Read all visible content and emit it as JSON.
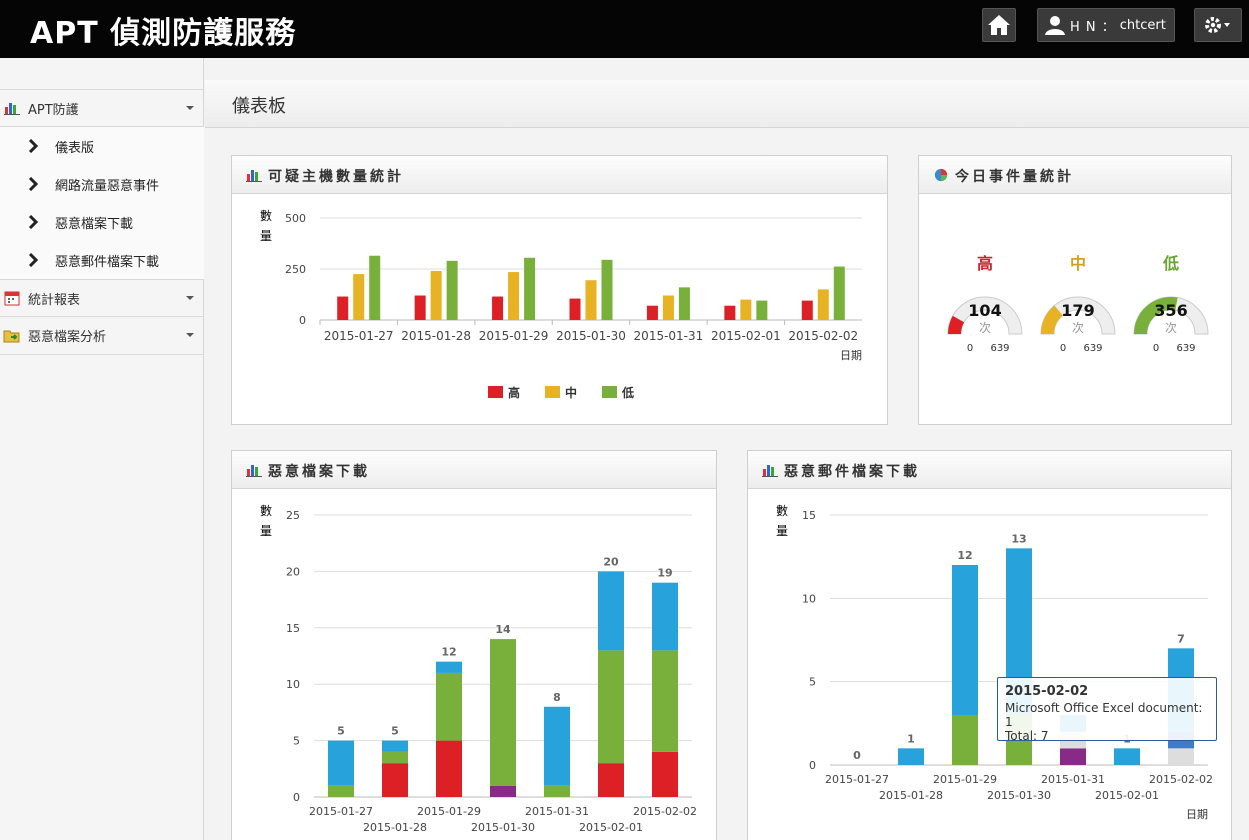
{
  "app": {
    "title": "APT 偵測防護服務"
  },
  "header": {
    "user_label": "H N ：",
    "user_name": "chtcert"
  },
  "sidebar": {
    "groups": [
      {
        "label": "APT防護",
        "items": [
          "儀表版",
          "網路流量惡意事件",
          "惡意檔案下載",
          "惡意郵件檔案下載"
        ]
      },
      {
        "label": "統計報表"
      },
      {
        "label": "惡意檔案分析"
      }
    ]
  },
  "page": {
    "title": "儀表板"
  },
  "panels": {
    "hosts": {
      "title": "可疑主機數量統計"
    },
    "today": {
      "title": "今日事件量統計"
    },
    "files": {
      "title": "惡意檔案下載"
    },
    "mails": {
      "title": "惡意郵件檔案下載"
    }
  },
  "colors": {
    "high": "#dd1f26",
    "mid": "#e7b224",
    "low": "#78b03b",
    "blue": "#27a2db",
    "purple": "#872b86",
    "darkblue": "#3d7cc4"
  },
  "chart_data": [
    {
      "type": "bar",
      "title": "可疑主機數量統計",
      "ylabel": "數量",
      "xlabel": "日期",
      "ylim": [
        0,
        500
      ],
      "yticks": [
        0,
        250,
        500
      ],
      "categories": [
        "2015-01-27",
        "2015-01-28",
        "2015-01-29",
        "2015-01-30",
        "2015-01-31",
        "2015-02-01",
        "2015-02-02"
      ],
      "series": [
        {
          "name": "高",
          "values": [
            115,
            120,
            115,
            105,
            70,
            70,
            95
          ]
        },
        {
          "name": "中",
          "values": [
            225,
            240,
            235,
            195,
            120,
            100,
            150
          ]
        },
        {
          "name": "低",
          "values": [
            315,
            290,
            305,
            295,
            160,
            95,
            262
          ]
        }
      ],
      "legend": "bottom"
    },
    {
      "type": "gauge",
      "title": "今日事件量統計",
      "unit": "次",
      "min": 0,
      "max": 639,
      "gauges": [
        {
          "label": "高",
          "value": 104
        },
        {
          "label": "中",
          "value": 179
        },
        {
          "label": "低",
          "value": 356
        }
      ]
    },
    {
      "type": "bar",
      "stacked": true,
      "title": "惡意檔案下載",
      "ylabel": "數量",
      "ylim": [
        0,
        25
      ],
      "yticks": [
        0,
        5,
        10,
        15,
        20,
        25
      ],
      "categories": [
        "2015-01-27",
        "2015-01-28",
        "2015-01-29",
        "2015-01-30",
        "2015-01-31",
        "2015-02-01",
        "2015-02-02"
      ],
      "series": [
        {
          "values": [
            0,
            3,
            5,
            0,
            0,
            3,
            4
          ]
        },
        {
          "values": [
            0,
            0,
            0,
            1,
            0,
            0,
            0
          ]
        },
        {
          "values": [
            1,
            1,
            6,
            13,
            1,
            10,
            9
          ]
        },
        {
          "values": [
            4,
            1,
            1,
            0,
            7,
            7,
            6
          ]
        }
      ],
      "totals": [
        5,
        5,
        12,
        14,
        8,
        20,
        19
      ]
    },
    {
      "type": "bar",
      "stacked": true,
      "title": "惡意郵件檔案下載",
      "ylabel": "數量",
      "xlabel": "日期",
      "ylim": [
        0,
        15
      ],
      "yticks": [
        0,
        5,
        10,
        15
      ],
      "categories": [
        "2015-01-27",
        "2015-01-28",
        "2015-01-29",
        "2015-01-30",
        "2015-01-31",
        "2015-02-01",
        "2015-02-02"
      ],
      "series": [
        {
          "values": [
            0,
            0,
            0,
            0,
            1,
            0,
            0
          ]
        },
        {
          "values": [
            0,
            0,
            0,
            0,
            1,
            0,
            1
          ]
        },
        {
          "values": [
            0,
            0,
            0,
            0,
            0,
            0,
            1
          ]
        },
        {
          "values": [
            0,
            0,
            3,
            3,
            0,
            0,
            0
          ]
        },
        {
          "values": [
            0,
            1,
            9,
            10,
            1,
            1,
            5
          ]
        }
      ],
      "totals": [
        0,
        1,
        12,
        13,
        3,
        1,
        7
      ],
      "tooltip": {
        "date": "2015-02-02",
        "line": "Microsoft Office Excel document: 1",
        "total": "Total: 7"
      }
    }
  ]
}
